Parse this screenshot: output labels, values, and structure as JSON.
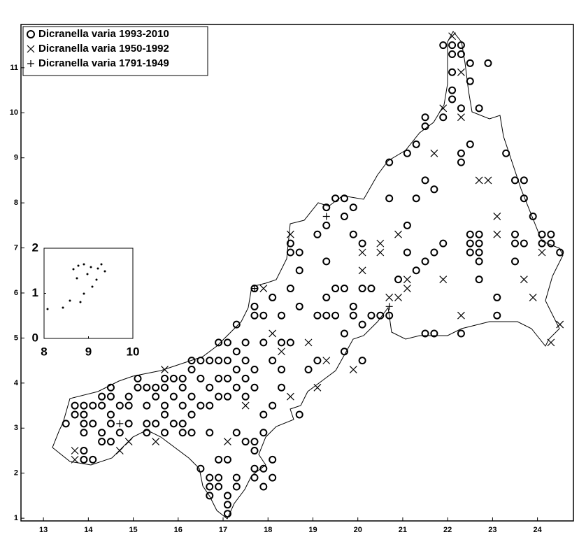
{
  "chart_data": [
    {
      "type": "scatter",
      "xlim": [
        12.5,
        24.8
      ],
      "ylim": [
        0.94,
        11.96
      ],
      "xticks": [
        13,
        14,
        15,
        16,
        17,
        18,
        19,
        20,
        21,
        22,
        23,
        24
      ],
      "yticks": [
        1,
        2,
        3,
        4,
        5,
        6,
        7,
        8,
        9,
        10,
        11
      ],
      "legend": "top-left",
      "series": [
        {
          "name": "Dicranella varia 1993-2010",
          "marker": "circle",
          "color": "#000000",
          "x": [
            13.5,
            13.7,
            13.7,
            13.9,
            13.9,
            13.9,
            13.9,
            13.9,
            13.9,
            14.1,
            14.1,
            14.1,
            14.3,
            14.3,
            14.3,
            14.3,
            14.5,
            14.5,
            14.5,
            14.5,
            14.5,
            14.7,
            14.7,
            14.9,
            14.9,
            14.9,
            15.1,
            15.1,
            15.3,
            15.3,
            15.3,
            15.3,
            15.5,
            15.5,
            15.5,
            15.7,
            15.7,
            15.7,
            15.7,
            15.7,
            15.9,
            15.9,
            15.9,
            16.1,
            16.1,
            16.1,
            16.1,
            16.1,
            16.3,
            16.3,
            16.3,
            16.3,
            16.3,
            16.5,
            16.5,
            16.5,
            16.5,
            16.7,
            16.7,
            16.7,
            16.7,
            16.7,
            16.7,
            16.7,
            16.9,
            16.9,
            16.9,
            16.9,
            16.9,
            16.9,
            16.9,
            17.1,
            17.1,
            17.1,
            17.1,
            17.1,
            17.1,
            17.1,
            17.1,
            17.3,
            17.3,
            17.3,
            17.3,
            17.3,
            17.3,
            17.3,
            17.5,
            17.5,
            17.5,
            17.5,
            17.5,
            17.7,
            17.7,
            17.7,
            17.7,
            17.7,
            17.7,
            17.7,
            17.7,
            17.7,
            17.9,
            17.9,
            17.9,
            17.9,
            17.9,
            17.9,
            18.1,
            18.1,
            18.1,
            18.1,
            18.1,
            18.3,
            18.3,
            18.3,
            18.3,
            18.5,
            18.5,
            18.5,
            18.5,
            18.7,
            18.7,
            18.7,
            18.7,
            18.9,
            19.1,
            19.1,
            19.1,
            19.3,
            19.3,
            19.3,
            19.3,
            19.3,
            19.5,
            19.5,
            19.5,
            19.7,
            19.7,
            19.7,
            19.7,
            19.7,
            19.9,
            19.9,
            19.9,
            19.9,
            20.1,
            20.1,
            20.1,
            20.1,
            20.3,
            20.3,
            20.5,
            20.7,
            20.7,
            20.7,
            20.9,
            21.1,
            21.1,
            21.1,
            21.3,
            21.3,
            21.3,
            21.5,
            21.5,
            21.5,
            21.5,
            21.5,
            21.7,
            21.7,
            21.7,
            21.9,
            21.9,
            21.9,
            22.1,
            22.1,
            22.1,
            22.1,
            22.1,
            22.3,
            22.3,
            22.3,
            22.3,
            22.3,
            22.3,
            22.5,
            22.5,
            22.5,
            22.5,
            22.5,
            22.5,
            22.7,
            22.7,
            22.7,
            22.7,
            22.7,
            22.7,
            22.9,
            23.1,
            23.1,
            23.3,
            23.5,
            23.5,
            23.5,
            23.5,
            23.7,
            23.7,
            23.7,
            23.9,
            24.1,
            24.1,
            24.3,
            24.3,
            24.5
          ],
          "y": [
            3.1,
            3.5,
            3.3,
            3.5,
            3.3,
            3.1,
            2.9,
            2.5,
            2.3,
            3.5,
            3.1,
            2.3,
            3.5,
            3.7,
            2.9,
            2.7,
            3.9,
            3.7,
            3.3,
            3.1,
            2.7,
            3.5,
            2.9,
            3.7,
            3.5,
            3.1,
            4.1,
            3.9,
            3.9,
            3.5,
            3.1,
            2.9,
            3.9,
            3.7,
            3.1,
            4.1,
            3.9,
            3.5,
            3.3,
            2.9,
            4.1,
            3.7,
            3.1,
            4.1,
            3.9,
            3.5,
            3.1,
            2.9,
            4.5,
            4.3,
            3.7,
            3.3,
            2.9,
            4.5,
            4.1,
            3.5,
            2.1,
            4.5,
            3.9,
            3.5,
            2.9,
            1.9,
            1.7,
            1.5,
            4.9,
            4.5,
            4.1,
            3.7,
            2.3,
            1.9,
            1.7,
            4.9,
            4.5,
            4.1,
            3.7,
            2.3,
            1.5,
            1.3,
            1.1,
            5.3,
            4.7,
            4.3,
            3.9,
            2.9,
            1.9,
            1.7,
            4.9,
            4.5,
            4.1,
            3.7,
            2.7,
            5.5,
            5.7,
            6.1,
            4.3,
            3.9,
            2.7,
            2.5,
            2.1,
            1.9,
            5.5,
            4.9,
            3.3,
            2.9,
            2.1,
            1.7,
            5.9,
            4.5,
            3.5,
            2.3,
            1.9,
            5.5,
            4.9,
            4.3,
            3.9,
            7.1,
            6.9,
            6.1,
            4.9,
            6.9,
            6.5,
            5.7,
            3.3,
            4.3,
            7.3,
            5.5,
            4.5,
            7.9,
            7.5,
            6.7,
            5.9,
            5.5,
            8.1,
            6.1,
            5.5,
            8.1,
            7.7,
            6.1,
            5.1,
            4.7,
            7.9,
            7.3,
            5.7,
            5.5,
            7.1,
            6.1,
            5.3,
            4.5,
            6.1,
            5.5,
            5.5,
            8.9,
            8.1,
            5.5,
            6.3,
            9.1,
            7.5,
            6.9,
            9.3,
            8.1,
            6.5,
            9.9,
            9.7,
            8.5,
            6.7,
            5.1,
            8.3,
            6.9,
            5.1,
            11.5,
            9.9,
            7.1,
            11.5,
            11.3,
            10.9,
            10.5,
            10.3,
            11.5,
            11.3,
            10.1,
            9.1,
            8.9,
            5.1,
            11.1,
            10.7,
            9.3,
            7.3,
            7.1,
            6.9,
            10.1,
            7.3,
            7.1,
            6.9,
            6.7,
            6.3,
            11.1,
            5.9,
            5.5,
            9.1,
            8.5,
            7.3,
            7.1,
            6.7,
            8.5,
            8.1,
            7.1,
            7.7,
            7.3,
            7.1,
            7.3,
            7.1,
            6.9
          ]
        },
        {
          "name": "Dicranella varia 1950-1992",
          "marker": "cross",
          "color": "#000000",
          "x": [
            13.7,
            13.7,
            14.7,
            14.9,
            15.5,
            15.7,
            17.1,
            17.5,
            17.9,
            18.1,
            18.3,
            18.5,
            18.5,
            18.9,
            19.1,
            19.3,
            19.9,
            20.1,
            20.1,
            20.5,
            20.5,
            20.7,
            20.9,
            20.9,
            21.1,
            21.1,
            21.7,
            21.9,
            21.9,
            22.3,
            22.3,
            22.7,
            22.9,
            23.1,
            23.1,
            22.1,
            23.7,
            23.9,
            24.1,
            24.3,
            24.5,
            22.3
          ],
          "y": [
            2.5,
            2.3,
            2.5,
            2.7,
            2.7,
            4.3,
            2.7,
            3.5,
            6.1,
            5.1,
            4.7,
            3.7,
            7.3,
            4.9,
            3.9,
            4.5,
            4.3,
            6.9,
            6.5,
            7.1,
            6.9,
            5.9,
            5.9,
            7.3,
            6.3,
            6.1,
            9.1,
            6.3,
            10.1,
            9.9,
            10.9,
            8.5,
            8.5,
            7.7,
            7.3,
            11.7,
            6.3,
            5.9,
            6.9,
            4.9,
            5.3,
            5.5
          ]
        },
        {
          "name": "Dicranella varia 1791-1949",
          "marker": "plus",
          "color": "#000000",
          "x": [
            17.7,
            19.3,
            20.7,
            14.7
          ],
          "y": [
            6.1,
            7.7,
            5.7,
            3.1
          ]
        }
      ]
    },
    {
      "type": "inset",
      "xlim": [
        8,
        10
      ],
      "ylim": [
        0,
        2
      ],
      "xticks": [
        8,
        9,
        10
      ],
      "yticks": [
        0,
        1,
        2
      ]
    }
  ]
}
